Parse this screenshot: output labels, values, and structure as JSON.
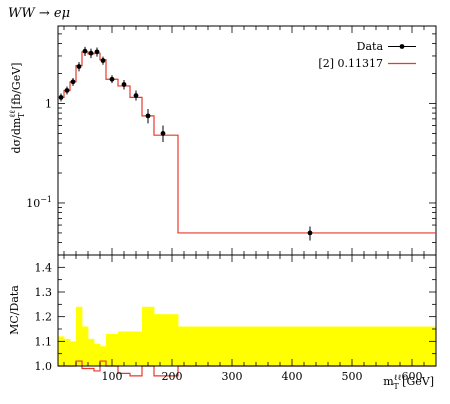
{
  "chart_data": [
    {
      "type": "line",
      "title": "WW → eμ",
      "ylabel": "dσ/dm_T^ℓℓ [fb/GeV]",
      "yscale": "log",
      "ylim": [
        0.03,
        6
      ],
      "xlim": [
        10,
        640
      ],
      "y_ticks": [
        {
          "value": 0.1,
          "label": "10^-1"
        },
        {
          "value": 1,
          "label": "1"
        }
      ],
      "legend_position": "top-right",
      "series": [
        {
          "name": "Data",
          "kind": "points",
          "color": "#000000",
          "x": [
            15,
            25,
            35,
            45,
            55,
            65,
            75,
            85,
            100,
            120,
            140,
            160,
            185,
            430
          ],
          "y": [
            1.15,
            1.35,
            1.65,
            2.35,
            3.35,
            3.2,
            3.3,
            2.7,
            1.75,
            1.55,
            1.2,
            0.75,
            0.5,
            0.05
          ],
          "y_low": [
            1.05,
            1.23,
            1.5,
            2.1,
            3.0,
            2.85,
            2.95,
            2.45,
            1.6,
            1.38,
            1.07,
            0.63,
            0.41,
            0.042
          ],
          "y_high": [
            1.26,
            1.48,
            1.8,
            2.6,
            3.7,
            3.55,
            3.65,
            2.95,
            1.92,
            1.72,
            1.35,
            0.88,
            0.6,
            0.058
          ]
        },
        {
          "name": "[2] 0.11317",
          "kind": "histogram",
          "color": "#e8392a",
          "edges": [
            10,
            20,
            30,
            40,
            50,
            60,
            70,
            80,
            90,
            110,
            130,
            150,
            170,
            210,
            640
          ],
          "values": [
            1.15,
            1.35,
            1.65,
            2.4,
            3.3,
            3.15,
            3.2,
            2.75,
            1.75,
            1.5,
            1.15,
            0.75,
            0.48,
            0.05
          ]
        }
      ]
    },
    {
      "type": "area",
      "ylabel": "MC/Data",
      "xlabel": "m_T^ℓℓ [GeV]",
      "xlim": [
        10,
        640
      ],
      "ylim": [
        1.0,
        1.45
      ],
      "y_ticks": [
        1.0,
        1.1,
        1.2,
        1.3,
        1.4
      ],
      "x_ticks": [
        100,
        200,
        300,
        400,
        500,
        600
      ],
      "band": {
        "color": "#ffff00",
        "edges": [
          10,
          20,
          30,
          40,
          50,
          60,
          70,
          80,
          90,
          110,
          130,
          150,
          170,
          210,
          640
        ],
        "upper": [
          1.12,
          1.11,
          1.1,
          1.24,
          1.16,
          1.11,
          1.09,
          1.08,
          1.13,
          1.14,
          1.14,
          1.24,
          1.21,
          1.16
        ],
        "lower": [
          1.0,
          1.0,
          1.0,
          1.0,
          1.0,
          1.0,
          1.0,
          1.0,
          1.0,
          1.0,
          1.0,
          1.0,
          1.0,
          1.0
        ]
      },
      "ratio_line": {
        "color": "#e8392a",
        "edges": [
          10,
          20,
          30,
          40,
          50,
          60,
          70,
          80,
          90,
          110,
          130,
          150,
          170,
          210,
          640
        ],
        "values": [
          1.0,
          1.0,
          1.0,
          1.02,
          0.99,
          0.99,
          0.98,
          1.02,
          1.0,
          0.97,
          0.96,
          1.0,
          0.96,
          1.0
        ]
      }
    }
  ]
}
